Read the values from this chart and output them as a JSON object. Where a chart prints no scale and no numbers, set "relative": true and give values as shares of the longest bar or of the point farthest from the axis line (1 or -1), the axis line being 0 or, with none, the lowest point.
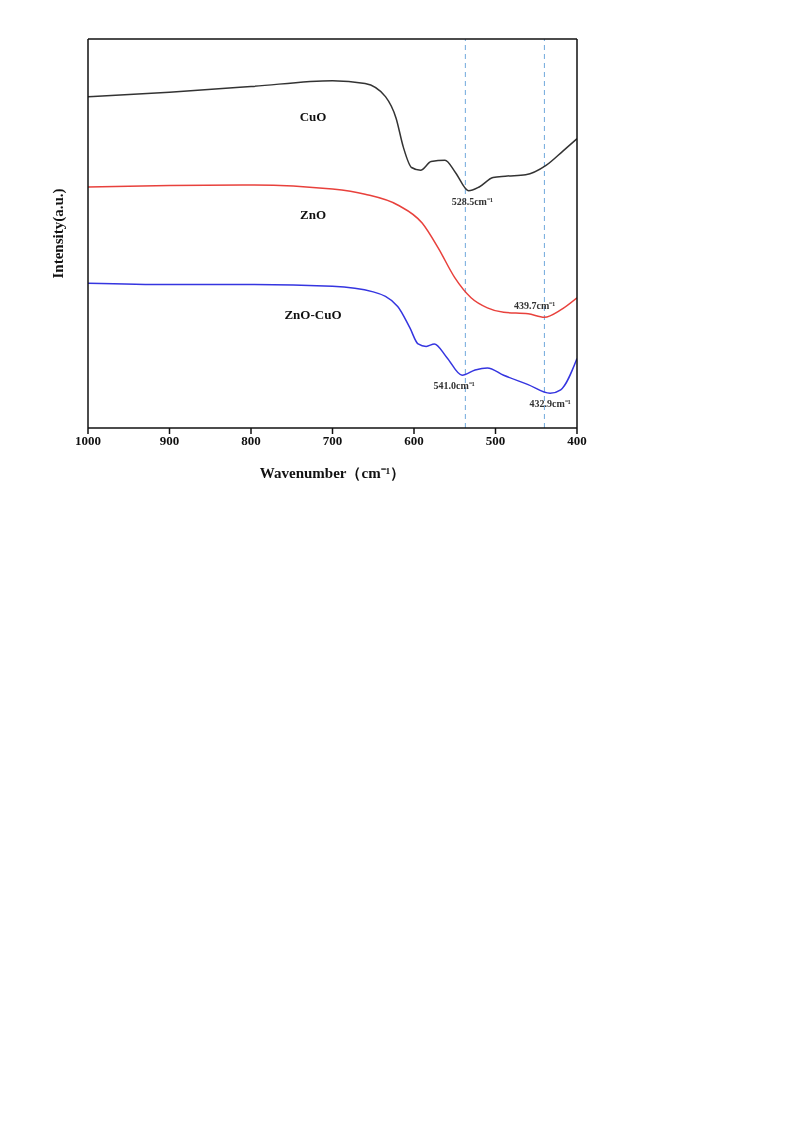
{
  "chart_data": {
    "type": "line",
    "relative": true,
    "xlabel": "Wavenumber（cm⁻¹）",
    "ylabel": "Intensity(a.u.)",
    "xlim": [
      1000,
      400
    ],
    "xticks": [
      1000,
      900,
      800,
      700,
      600,
      500,
      400
    ],
    "marker": "none",
    "line_style": "solid",
    "series": [
      {
        "name": "CuO",
        "color": "#333333",
        "x": [
          1000,
          900,
          800,
          700,
          660,
          635,
          622,
          613,
          603,
          592,
          579,
          562,
          549,
          533,
          520,
          503,
          488,
          463,
          438,
          417,
          400
        ],
        "values": [
          0.954,
          0.967,
          0.983,
          1,
          0.992,
          0.954,
          0.892,
          0.808,
          0.75,
          0.742,
          0.767,
          0.771,
          0.735,
          0.683,
          0.694,
          0.721,
          0.725,
          0.729,
          0.756,
          0.798,
          0.833
        ]
      },
      {
        "name": "ZnO",
        "color": "#e8413c",
        "x": [
          1000,
          900,
          800,
          700,
          660,
          620,
          590,
          570,
          550,
          530,
          510,
          490,
          460,
          440,
          420,
          400
        ],
        "values": [
          0.694,
          0.698,
          0.7,
          0.688,
          0.673,
          0.642,
          0.59,
          0.517,
          0.433,
          0.375,
          0.346,
          0.333,
          0.329,
          0.319,
          0.34,
          0.375
        ]
      },
      {
        "name": "ZnO-CuO",
        "color": "#3535e0",
        "x": [
          1000,
          900,
          800,
          700,
          650,
          620,
          605,
          595,
          585,
          575,
          560,
          541,
          525,
          510,
          490,
          460,
          433,
          420,
          400
        ],
        "values": [
          0.417,
          0.413,
          0.413,
          0.408,
          0.392,
          0.35,
          0.288,
          0.242,
          0.235,
          0.242,
          0.204,
          0.152,
          0.167,
          0.173,
          0.152,
          0.125,
          0.1,
          0.11,
          0.2
        ]
      }
    ],
    "ref_lines": [
      {
        "axis": "x",
        "value": 537,
        "color": "#6fa8dc",
        "line_style": "dashed"
      },
      {
        "axis": "x",
        "value": 440,
        "color": "#6fa8dc",
        "line_style": "dashed"
      }
    ],
    "annotations": [
      {
        "text": "528.5cm⁻¹",
        "x": 528.5,
        "y": 0.683
      },
      {
        "text": "439.7cm⁻¹",
        "x": 439.7,
        "y": 0.319
      },
      {
        "text": "541.0cm⁻¹",
        "x": 541,
        "y": 0.152
      },
      {
        "text": "432.9cm⁻¹",
        "x": 432.9,
        "y": 0.1
      }
    ]
  }
}
